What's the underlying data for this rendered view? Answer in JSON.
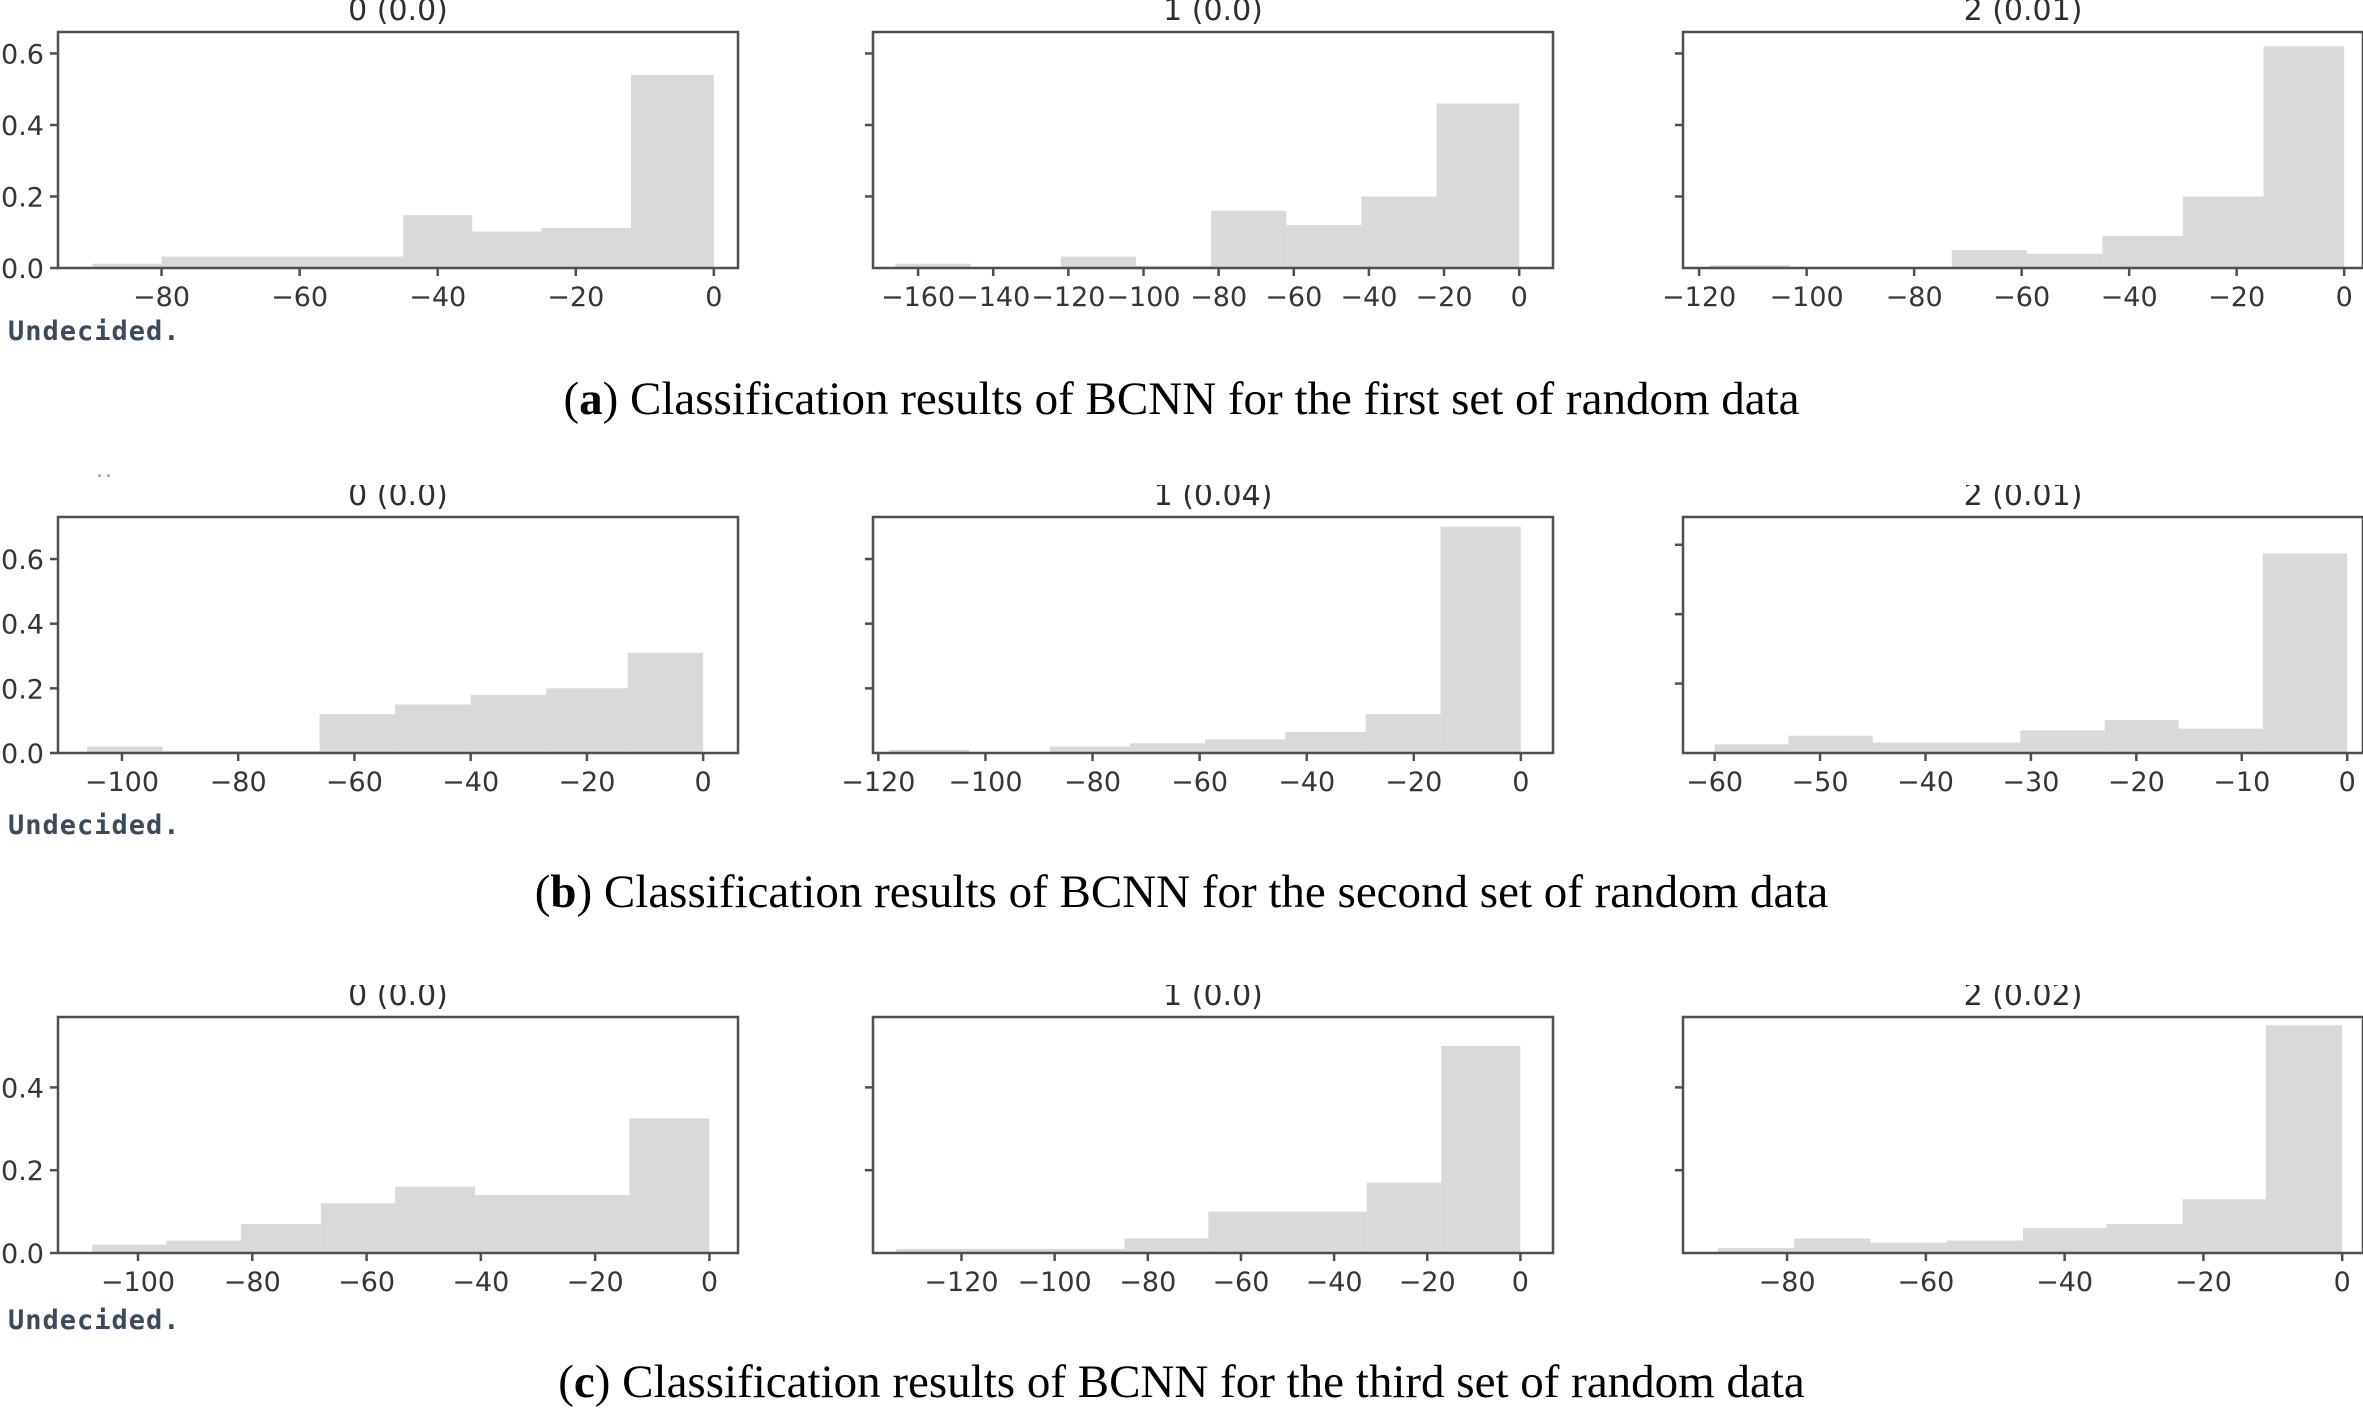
{
  "figure": {
    "undecided_label": "Undecided.",
    "artifact_dots": "..",
    "colors": {
      "bar_fill": "#d9d9d9",
      "frame": "#4f4f4f",
      "tick_label": "#363636",
      "title": "#2e2e2e",
      "undecided": "#3c4b5c",
      "caption": "#000000"
    }
  },
  "captions": [
    {
      "open": "(",
      "letter": "a",
      "rest": ") Classification results of BCNN for the first set of random data"
    },
    {
      "open": "(",
      "letter": "b",
      "rest": ") Classification results of BCNN for the second set of random data"
    },
    {
      "open": "(",
      "letter": "c",
      "rest": ") Classification results of BCNN for the third set of random data"
    }
  ],
  "chart_data": [
    {
      "type": "bar",
      "row": "a",
      "title": "0 (0.0)",
      "xlim": [
        -95,
        3.5
      ],
      "ylim": [
        0,
        0.66
      ],
      "xticks": [
        -80,
        -60,
        -40,
        -20,
        0
      ],
      "yticks": [
        0.0,
        0.2,
        0.4,
        0.6
      ],
      "ytick_labels": true,
      "bars": [
        [
          -90,
          -80,
          0.012
        ],
        [
          -80,
          -45,
          0.032
        ],
        [
          -45,
          -35,
          0.148
        ],
        [
          -35,
          -25,
          0.102
        ],
        [
          -25,
          -12,
          0.112
        ],
        [
          -12,
          0,
          0.54
        ]
      ]
    },
    {
      "type": "bar",
      "row": "a",
      "title": "1 (0.0)",
      "xlim": [
        -172,
        9
      ],
      "ylim": [
        0,
        0.66
      ],
      "xticks": [
        -160,
        -140,
        -120,
        -100,
        -80,
        -60,
        -40,
        -20,
        0
      ],
      "yticks": [
        0.2,
        0.4,
        0.6
      ],
      "ytick_labels": false,
      "bars": [
        [
          -166,
          -146,
          0.012
        ],
        [
          -122,
          -102,
          0.032
        ],
        [
          -102,
          -82,
          0.006
        ],
        [
          -82,
          -62,
          0.16
        ],
        [
          -62,
          -42,
          0.12
        ],
        [
          -42,
          -22,
          0.2
        ],
        [
          -22,
          0,
          0.46
        ]
      ]
    },
    {
      "type": "bar",
      "row": "a",
      "title": "2 (0.01)",
      "xlim": [
        -123,
        3.5
      ],
      "ylim": [
        0,
        0.66
      ],
      "xticks": [
        -120,
        -100,
        -80,
        -60,
        -40,
        -20,
        0
      ],
      "yticks": [
        0.2,
        0.4,
        0.6
      ],
      "ytick_labels": false,
      "bars": [
        [
          -118,
          -103,
          0.008
        ],
        [
          -73,
          -59,
          0.05
        ],
        [
          -59,
          -45,
          0.04
        ],
        [
          -45,
          -30,
          0.09
        ],
        [
          -30,
          -15,
          0.2
        ],
        [
          -15,
          0,
          0.62
        ]
      ]
    },
    {
      "type": "bar",
      "row": "b",
      "title": "0 (0.0)",
      "xlim": [
        -111,
        6
      ],
      "ylim": [
        0,
        0.73
      ],
      "xticks": [
        -100,
        -80,
        -60,
        -40,
        -20,
        0
      ],
      "yticks": [
        0.0,
        0.2,
        0.4,
        0.6
      ],
      "ytick_labels": true,
      "bars": [
        [
          -106,
          -93,
          0.02
        ],
        [
          -93,
          -66,
          0.006
        ],
        [
          -66,
          -53,
          0.12
        ],
        [
          -53,
          -40,
          0.15
        ],
        [
          -40,
          -27,
          0.18
        ],
        [
          -27,
          -13,
          0.2
        ],
        [
          -13,
          0,
          0.31
        ]
      ]
    },
    {
      "type": "bar",
      "row": "b",
      "title": "1 (0.04)",
      "xlim": [
        -121,
        6
      ],
      "ylim": [
        0,
        0.73
      ],
      "xticks": [
        -120,
        -100,
        -80,
        -60,
        -40,
        -20,
        0
      ],
      "yticks": [
        0.2,
        0.4,
        0.6
      ],
      "ytick_labels": false,
      "bars": [
        [
          -118,
          -103,
          0.01
        ],
        [
          -103,
          -88,
          0.004
        ],
        [
          -88,
          -73,
          0.02
        ],
        [
          -73,
          -59,
          0.03
        ],
        [
          -59,
          -44,
          0.042
        ],
        [
          -44,
          -29,
          0.065
        ],
        [
          -29,
          -15,
          0.12
        ],
        [
          -15,
          0,
          0.7
        ]
      ]
    },
    {
      "type": "bar",
      "row": "b",
      "title": "2 (0.01)",
      "xlim": [
        -63,
        1.5
      ],
      "ylim": [
        0,
        0.68
      ],
      "xticks": [
        -60,
        -50,
        -40,
        -30,
        -20,
        -10,
        0
      ],
      "yticks": [
        0.2,
        0.4,
        0.6
      ],
      "ytick_labels": false,
      "bars": [
        [
          -60,
          -53,
          0.025
        ],
        [
          -53,
          -45,
          0.05
        ],
        [
          -45,
          -31,
          0.03
        ],
        [
          -31,
          -23,
          0.065
        ],
        [
          -23,
          -16,
          0.095
        ],
        [
          -16,
          -8,
          0.07
        ],
        [
          -8,
          0,
          0.575
        ]
      ]
    },
    {
      "type": "bar",
      "row": "c",
      "title": "0 (0.0)",
      "xlim": [
        -114,
        5
      ],
      "ylim": [
        0,
        0.57
      ],
      "xticks": [
        -100,
        -80,
        -60,
        -40,
        -20,
        0
      ],
      "yticks": [
        0.0,
        0.2,
        0.4
      ],
      "ytick_labels": true,
      "bars": [
        [
          -108,
          -95,
          0.02
        ],
        [
          -95,
          -82,
          0.03
        ],
        [
          -82,
          -68,
          0.07
        ],
        [
          -68,
          -55,
          0.12
        ],
        [
          -55,
          -41,
          0.16
        ],
        [
          -41,
          -14,
          0.14
        ],
        [
          -14,
          0,
          0.325
        ]
      ]
    },
    {
      "type": "bar",
      "row": "c",
      "title": "1 (0.0)",
      "xlim": [
        -139,
        7
      ],
      "ylim": [
        0,
        0.57
      ],
      "xticks": [
        -120,
        -100,
        -80,
        -60,
        -40,
        -20,
        0
      ],
      "yticks": [
        0.2,
        0.4
      ],
      "ytick_labels": false,
      "bars": [
        [
          -134,
          -85,
          0.01
        ],
        [
          -85,
          -67,
          0.035
        ],
        [
          -67,
          -33,
          0.1
        ],
        [
          -33,
          -17,
          0.17
        ],
        [
          -17,
          0,
          0.5
        ]
      ]
    },
    {
      "type": "bar",
      "row": "c",
      "title": "2 (0.02)",
      "xlim": [
        -95,
        3
      ],
      "ylim": [
        0,
        0.57
      ],
      "xticks": [
        -80,
        -60,
        -40,
        -20,
        0
      ],
      "yticks": [
        0.2,
        0.4
      ],
      "ytick_labels": false,
      "bars": [
        [
          -90,
          -79,
          0.012
        ],
        [
          -79,
          -68,
          0.035
        ],
        [
          -68,
          -57,
          0.025
        ],
        [
          -57,
          -46,
          0.03
        ],
        [
          -46,
          -34,
          0.06
        ],
        [
          -34,
          -23,
          0.07
        ],
        [
          -23,
          -11,
          0.13
        ],
        [
          -11,
          0,
          0.55
        ]
      ]
    }
  ]
}
